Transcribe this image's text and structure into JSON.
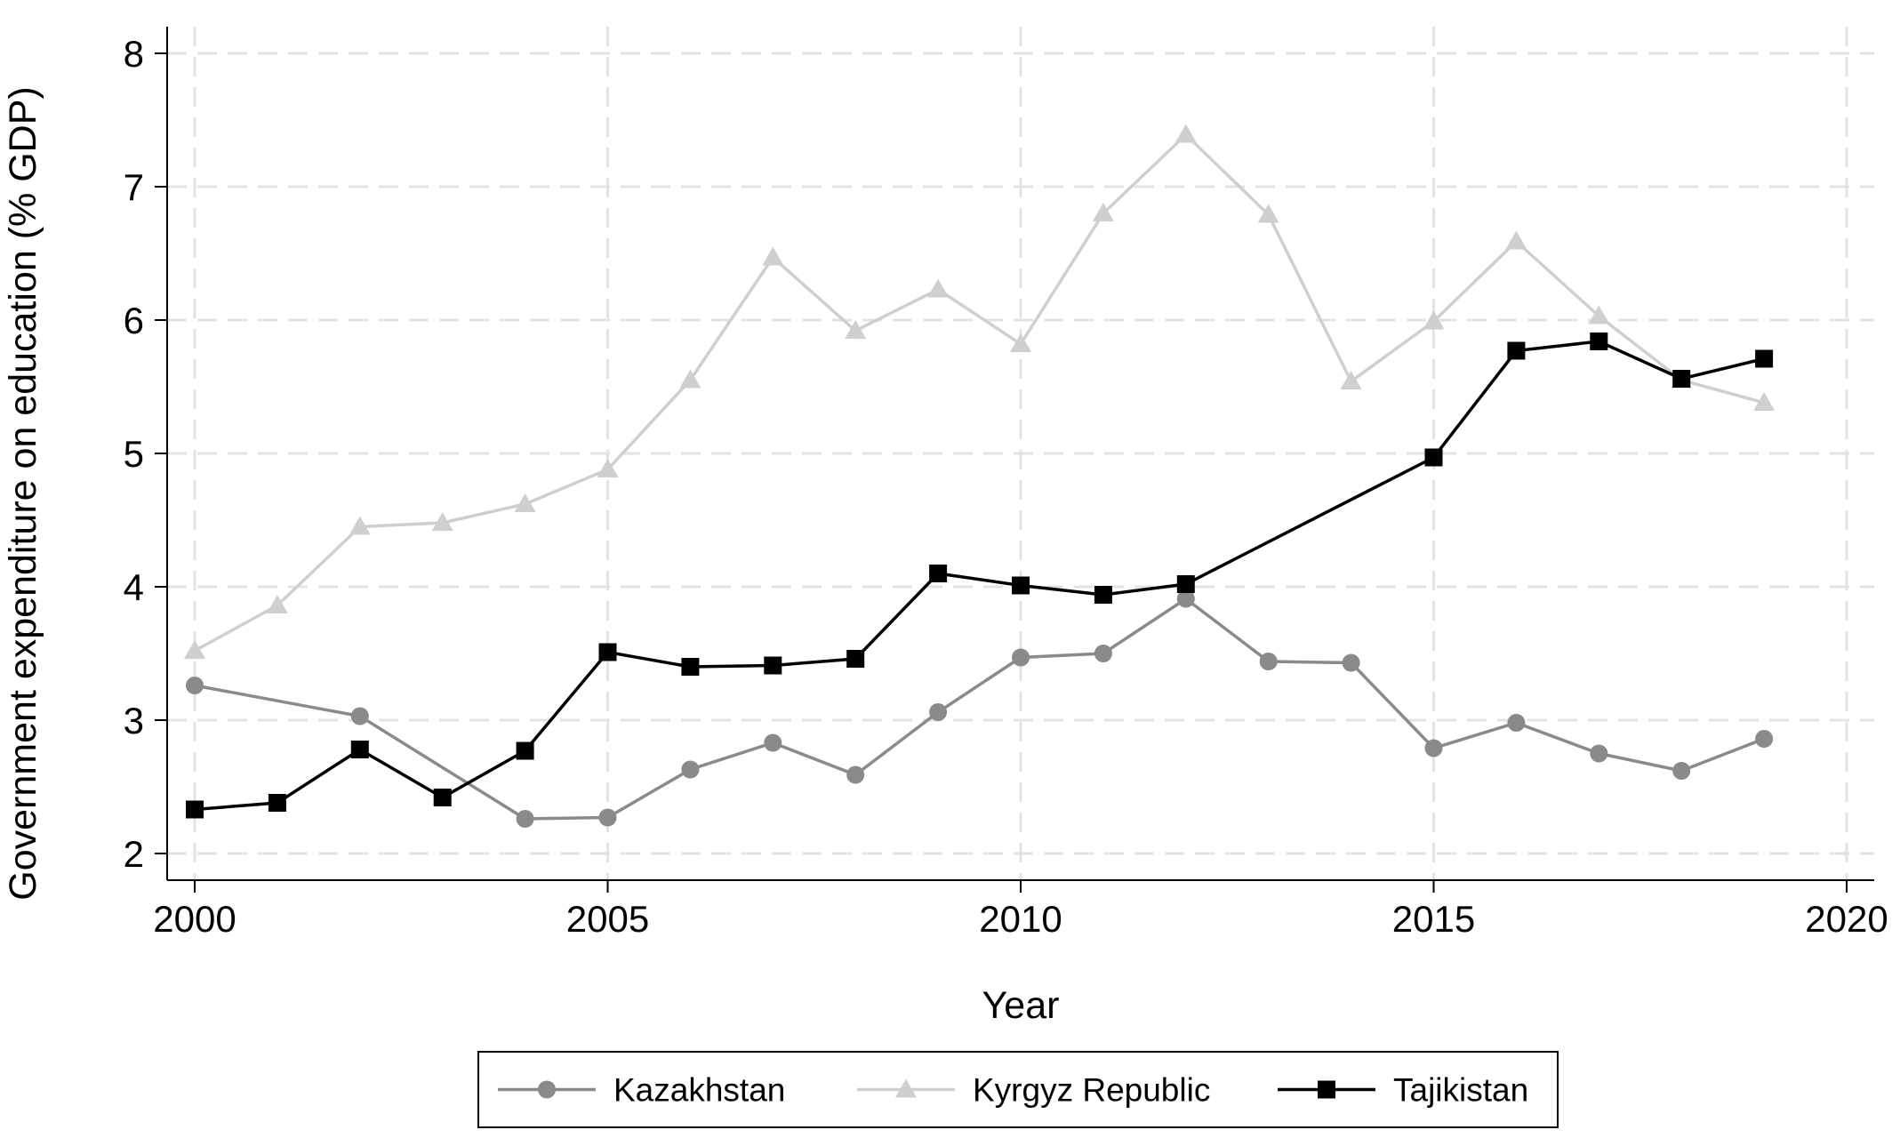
{
  "chart_data": {
    "type": "line",
    "title": "",
    "xlabel": "Year",
    "ylabel": "Government expenditure on education (% GDP)",
    "xlim": [
      2000,
      2020
    ],
    "ylim": [
      2,
      8
    ],
    "xticks": [
      2000,
      2005,
      2010,
      2015,
      2020
    ],
    "yticks": [
      2,
      3,
      4,
      5,
      6,
      7,
      8
    ],
    "grid": true,
    "legend_position": "bottom",
    "series": [
      {
        "name": "Kazakhstan",
        "color": "#8a8a8a",
        "marker": "circle",
        "points": [
          {
            "x": 2000,
            "y": 3.26
          },
          {
            "x": 2002,
            "y": 3.03
          },
          {
            "x": 2004,
            "y": 2.26
          },
          {
            "x": 2005,
            "y": 2.27
          },
          {
            "x": 2006,
            "y": 2.63
          },
          {
            "x": 2007,
            "y": 2.83
          },
          {
            "x": 2008,
            "y": 2.59
          },
          {
            "x": 2009,
            "y": 3.06
          },
          {
            "x": 2010,
            "y": 3.47
          },
          {
            "x": 2011,
            "y": 3.5
          },
          {
            "x": 2012,
            "y": 3.91
          },
          {
            "x": 2013,
            "y": 3.44
          },
          {
            "x": 2014,
            "y": 3.43
          },
          {
            "x": 2015,
            "y": 2.79
          },
          {
            "x": 2016,
            "y": 2.98
          },
          {
            "x": 2017,
            "y": 2.75
          },
          {
            "x": 2018,
            "y": 2.62
          },
          {
            "x": 2019,
            "y": 2.86
          }
        ]
      },
      {
        "name": "Kyrgyz Republic",
        "color": "#cfcfcf",
        "marker": "triangle",
        "points": [
          {
            "x": 2000,
            "y": 3.52
          },
          {
            "x": 2001,
            "y": 3.86
          },
          {
            "x": 2002,
            "y": 4.45
          },
          {
            "x": 2003,
            "y": 4.48
          },
          {
            "x": 2004,
            "y": 4.62
          },
          {
            "x": 2005,
            "y": 4.88
          },
          {
            "x": 2006,
            "y": 5.55
          },
          {
            "x": 2007,
            "y": 6.47
          },
          {
            "x": 2008,
            "y": 5.92
          },
          {
            "x": 2009,
            "y": 6.23
          },
          {
            "x": 2010,
            "y": 5.82
          },
          {
            "x": 2011,
            "y": 6.8
          },
          {
            "x": 2012,
            "y": 7.39
          },
          {
            "x": 2013,
            "y": 6.79
          },
          {
            "x": 2014,
            "y": 5.54
          },
          {
            "x": 2015,
            "y": 5.99
          },
          {
            "x": 2016,
            "y": 6.59
          },
          {
            "x": 2017,
            "y": 6.03
          },
          {
            "x": 2018,
            "y": 5.55
          },
          {
            "x": 2019,
            "y": 5.38
          }
        ]
      },
      {
        "name": "Tajikistan",
        "color": "#000000",
        "marker": "square",
        "points": [
          {
            "x": 2000,
            "y": 2.33
          },
          {
            "x": 2001,
            "y": 2.38
          },
          {
            "x": 2002,
            "y": 2.78
          },
          {
            "x": 2003,
            "y": 2.42
          },
          {
            "x": 2004,
            "y": 2.77
          },
          {
            "x": 2005,
            "y": 3.51
          },
          {
            "x": 2006,
            "y": 3.4
          },
          {
            "x": 2007,
            "y": 3.41
          },
          {
            "x": 2008,
            "y": 3.46
          },
          {
            "x": 2009,
            "y": 4.1
          },
          {
            "x": 2010,
            "y": 4.01
          },
          {
            "x": 2011,
            "y": 3.94
          },
          {
            "x": 2012,
            "y": 4.02
          },
          {
            "x": 2015,
            "y": 4.97
          },
          {
            "x": 2016,
            "y": 5.77
          },
          {
            "x": 2017,
            "y": 5.84
          },
          {
            "x": 2018,
            "y": 5.56
          },
          {
            "x": 2019,
            "y": 5.71
          }
        ]
      }
    ]
  }
}
